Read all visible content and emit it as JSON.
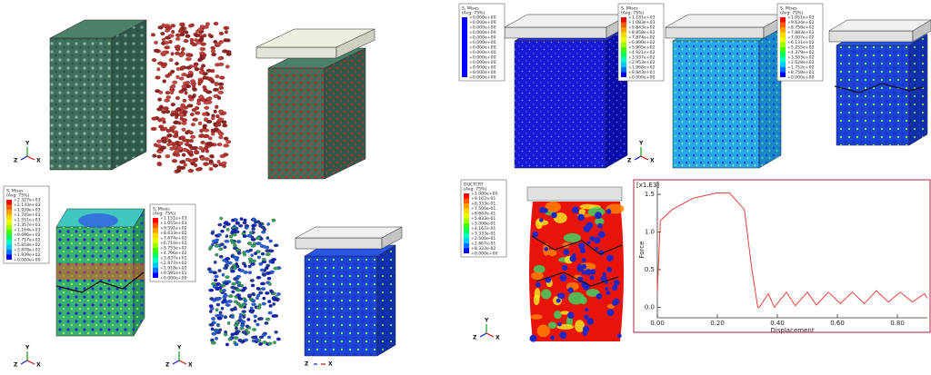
{
  "legends": [
    {
      "title": "S, Mises",
      "subtitle": "(Avg: 75%)",
      "values": [
        "+2.327e+03",
        "+2.133e+03",
        "+1.939e+03",
        "+1.745e+03",
        "+1.551e+03",
        "+1.357e+03",
        "+1.164e+03",
        "+9.696e+02",
        "+7.757e+02",
        "+5.818e+02",
        "+3.878e+02",
        "+1.939e+02",
        "+0.000e+00"
      ]
    },
    {
      "title": "S, Mises",
      "subtitle": "(Avg: 75%)",
      "values": [
        "+1.151e+03",
        "+1.055e+03",
        "+9.591e+02",
        "+8.633e+02",
        "+7.674e+02",
        "+6.714e+02",
        "+5.755e+02",
        "+4.796e+02",
        "+3.837e+02",
        "+2.877e+02",
        "+1.918e+02",
        "+9.591e+01",
        "+0.000e+00"
      ]
    },
    {
      "title": "S, Mises",
      "subtitle": "(Avg: 75%)",
      "values": [
        "+0.000e+00",
        "+0.000e+00",
        "+0.000e+00",
        "+0.000e+00",
        "+0.000e+00",
        "+0.000e+00",
        "+0.000e+00",
        "+0.000e+00",
        "+0.000e+00",
        "+0.000e+00",
        "+0.000e+00",
        "+0.000e+00",
        "+0.000e+00"
      ]
    },
    {
      "title": "S, Mises",
      "subtitle": "(Avg: 75%)",
      "values": [
        "+1.181e+03",
        "+1.083e+03",
        "+9.843e+02",
        "+8.858e+02",
        "+7.874e+02",
        "+6.890e+02",
        "+5.905e+02",
        "+4.921e+02",
        "+3.937e+02",
        "+2.953e+02",
        "+1.968e+02",
        "+9.843e+01",
        "+0.000e+00"
      ]
    },
    {
      "title": "S, Mises",
      "subtitle": "(Avg: 75%)",
      "values": [
        "+1.051e+03",
        "+9.634e+02",
        "+8.758e+02",
        "+7.883e+02",
        "+7.007e+02",
        "+6.131e+02",
        "+5.255e+02",
        "+4.379e+02",
        "+3.503e+02",
        "+2.628e+02",
        "+1.752e+02",
        "+8.758e+01",
        "+0.000e+00"
      ]
    },
    {
      "title": "DUCTCRT",
      "subtitle": "(Avg: 75%)",
      "values": [
        "+1.000e+00",
        "+9.167e-01",
        "+8.333e-01",
        "+7.500e-01",
        "+6.667e-01",
        "+5.833e-01",
        "+5.000e-01",
        "+4.167e-01",
        "+3.333e-01",
        "+2.500e-01",
        "+1.667e-01",
        "+8.333e-02",
        "+0.000e+00"
      ]
    }
  ],
  "triads": [
    {
      "y": "Y",
      "z": "Z",
      "x": "X"
    },
    {
      "y": "Y",
      "z": "Z",
      "x": "X"
    },
    {
      "y": "Y",
      "z": "Z",
      "x": "X"
    },
    {
      "y": "Y",
      "z": "Z",
      "x": "X"
    },
    {
      "y": "Y",
      "z": "Z",
      "x": "X"
    },
    {
      "z": "Z",
      "x": "X"
    }
  ],
  "chart_data": {
    "type": "line",
    "scale_label": "[x1.E3]",
    "xlabel": "Displacement",
    "ylabel": "Force",
    "x": [
      0,
      0.01,
      0.05,
      0.12,
      0.2,
      0.24,
      0.29,
      0.315,
      0.335,
      0.34,
      0.37,
      0.39,
      0.43,
      0.46,
      0.5,
      0.53,
      0.57,
      0.61,
      0.65,
      0.69,
      0.73,
      0.77,
      0.81,
      0.85,
      0.89,
      0.9
    ],
    "values": [
      0.2,
      1.15,
      1.3,
      1.45,
      1.52,
      1.52,
      1.3,
      0.5,
      0.0,
      0.0,
      0.18,
      0.0,
      0.2,
      0.02,
      0.2,
      0.03,
      0.2,
      0.05,
      0.2,
      0.05,
      0.22,
      0.07,
      0.2,
      0.07,
      0.18,
      0.12
    ],
    "color": "#e8413c",
    "xlim": [
      0,
      0.9
    ],
    "ylim": [
      -0.14,
      1.67
    ],
    "xticks": [
      {
        "value": 0,
        "label": "0.00"
      },
      {
        "value": 0.2,
        "label": "0.20"
      },
      {
        "value": 0.4,
        "label": "0.40"
      },
      {
        "value": 0.6,
        "label": "0.60"
      },
      {
        "value": 0.8,
        "label": "0.80"
      }
    ],
    "yticks": [
      {
        "value": 0,
        "label": "0.0"
      },
      {
        "value": 0.5,
        "label": "0.5"
      },
      {
        "value": 1,
        "label": "1.0"
      },
      {
        "value": 1.5,
        "label": "1.5"
      }
    ]
  }
}
